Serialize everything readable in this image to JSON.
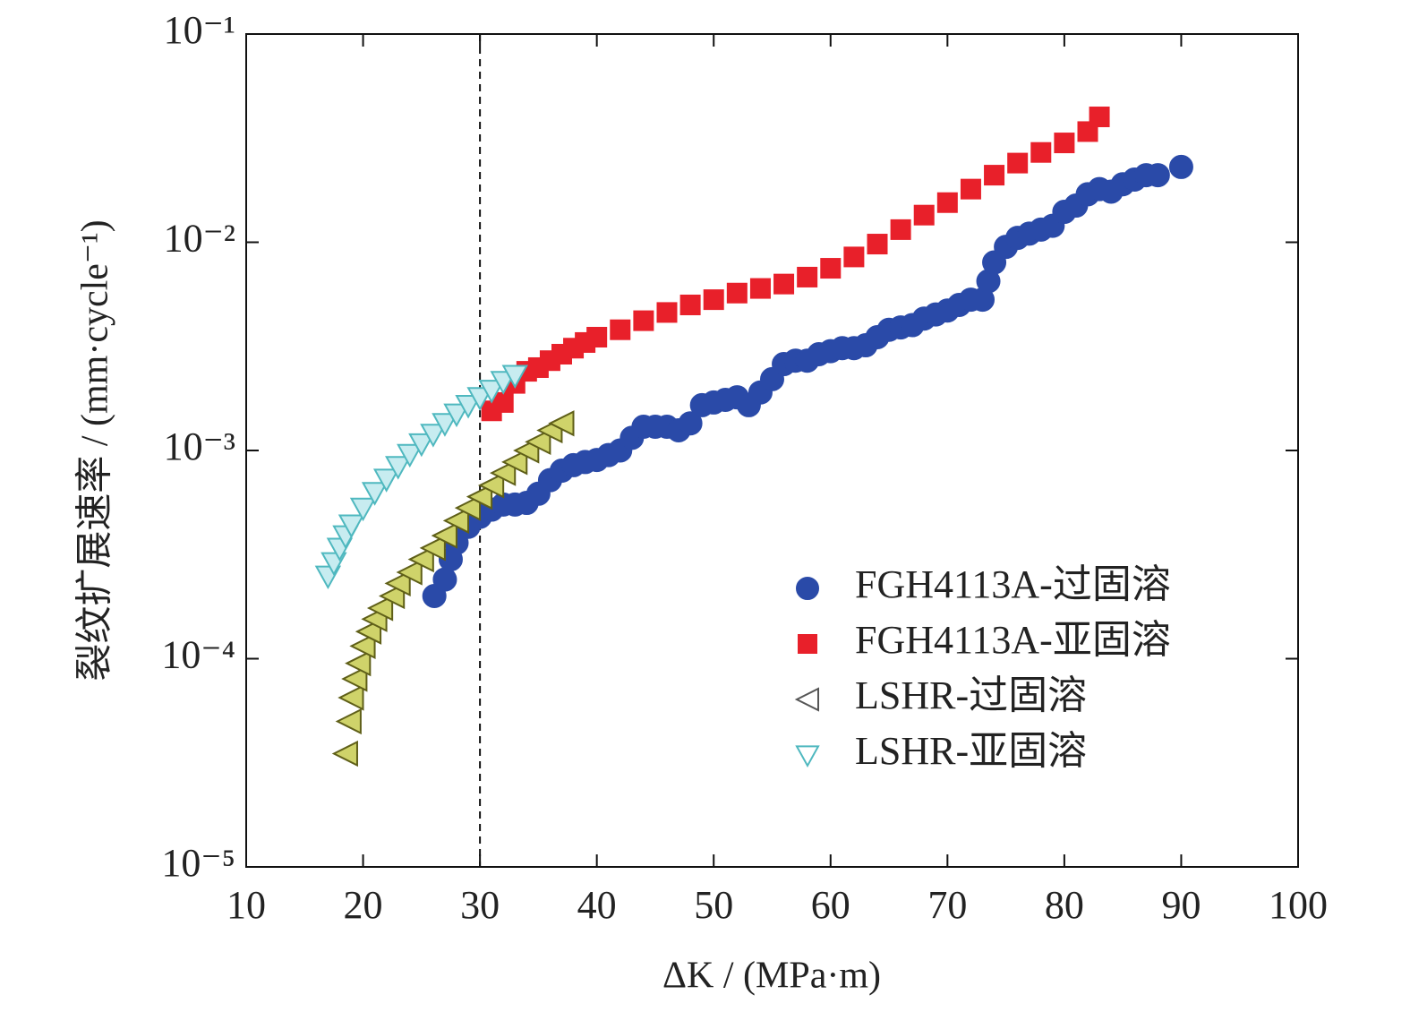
{
  "chart_data": {
    "type": "scatter",
    "x_label": "ΔK / (MPa·m)",
    "y_label": "裂纹扩展速率 / (mm·cycle⁻¹)",
    "xlim": [
      10,
      100
    ],
    "xticks": [
      10,
      20,
      30,
      40,
      50,
      60,
      70,
      80,
      90,
      100
    ],
    "ylim": [
      1e-05,
      0.1
    ],
    "y_scale": "log",
    "yticks": [
      {
        "value": 1e-05,
        "label": "10⁻⁵"
      },
      {
        "value": 0.0001,
        "label": "10⁻⁴"
      },
      {
        "value": 0.001,
        "label": "10⁻³"
      },
      {
        "value": 0.01,
        "label": "10⁻²"
      },
      {
        "value": 0.1,
        "label": "10⁻¹"
      }
    ],
    "vline_x": 30,
    "legend": "lower right",
    "series": [
      {
        "name": "FGH4113A-过固溶",
        "marker": "circle",
        "color": "#2a4aa8",
        "fill": "#2a4aa8",
        "x": [
          26.1,
          27,
          27.5,
          28,
          29,
          30,
          31,
          32,
          33,
          34,
          35,
          36,
          37,
          38,
          39,
          40,
          41,
          42,
          43,
          44,
          45,
          46,
          47,
          48,
          49,
          50,
          51,
          52,
          53,
          54,
          55,
          56,
          57,
          58,
          59,
          60,
          61,
          62,
          63,
          64,
          65,
          66,
          67,
          68,
          69,
          70,
          71,
          72,
          73,
          73.5,
          74,
          75,
          76,
          77,
          78,
          79,
          80,
          81,
          82,
          83,
          84,
          85,
          86,
          87,
          88,
          90
        ],
        "values": [
          0.0002,
          0.00024,
          0.0003,
          0.00036,
          0.00043,
          0.00048,
          0.00052,
          0.00055,
          0.00055,
          0.00056,
          0.00062,
          0.00072,
          0.0008,
          0.00085,
          0.00088,
          0.0009,
          0.00095,
          0.001,
          0.00115,
          0.0013,
          0.0013,
          0.0013,
          0.00125,
          0.00135,
          0.00165,
          0.0017,
          0.00175,
          0.0018,
          0.00165,
          0.0019,
          0.0022,
          0.0026,
          0.0027,
          0.0027,
          0.0029,
          0.003,
          0.0031,
          0.0031,
          0.0032,
          0.0035,
          0.0038,
          0.0039,
          0.004,
          0.0043,
          0.0045,
          0.0047,
          0.005,
          0.0053,
          0.0053,
          0.0065,
          0.008,
          0.0095,
          0.0105,
          0.011,
          0.0115,
          0.012,
          0.014,
          0.015,
          0.017,
          0.018,
          0.0175,
          0.019,
          0.02,
          0.021,
          0.021,
          0.023
        ]
      },
      {
        "name": "FGH4113A-亚固溶",
        "marker": "square",
        "color": "#e8202a",
        "fill": "#e8202a",
        "x": [
          31,
          32,
          33,
          34,
          35,
          36,
          37,
          38,
          39,
          40,
          42,
          44,
          46,
          48,
          50,
          52,
          54,
          56,
          58,
          60,
          62,
          64,
          66,
          68,
          70,
          72,
          74,
          76,
          78,
          80,
          82,
          83
        ],
        "values": [
          0.00155,
          0.0017,
          0.0021,
          0.0024,
          0.0025,
          0.0027,
          0.0029,
          0.0031,
          0.0033,
          0.0035,
          0.0038,
          0.0042,
          0.0046,
          0.005,
          0.0053,
          0.0057,
          0.006,
          0.0063,
          0.0068,
          0.0075,
          0.0085,
          0.0098,
          0.0115,
          0.0135,
          0.0155,
          0.018,
          0.021,
          0.024,
          0.027,
          0.03,
          0.034,
          0.04
        ]
      },
      {
        "name": "LSHR-过固溶",
        "marker": "triangle-left",
        "color": "#5f5f18",
        "fill": "#cfd36a",
        "x": [
          18.5,
          18.8,
          19,
          19.3,
          19.6,
          20,
          20.5,
          21,
          21.5,
          22.5,
          23,
          24,
          25,
          26,
          27,
          28,
          29,
          30,
          31,
          32,
          33,
          34,
          35,
          36,
          37
        ],
        "values": [
          3.5e-05,
          5e-05,
          6.5e-05,
          8e-05,
          9.5e-05,
          0.000115,
          0.000135,
          0.000155,
          0.000175,
          0.0002,
          0.00023,
          0.00026,
          0.0003,
          0.00034,
          0.00039,
          0.00046,
          0.00053,
          0.0006,
          0.00068,
          0.00078,
          0.00088,
          0.001,
          0.0011,
          0.00125,
          0.00135
        ]
      },
      {
        "name": "LSHR-亚固溶",
        "marker": "triangle-down",
        "color": "#4fb8bf",
        "fill": "#c7ecf0",
        "x": [
          17,
          17.5,
          18,
          18.5,
          19,
          20,
          21,
          22,
          23,
          24,
          25,
          26,
          27,
          28,
          29,
          30,
          31,
          32,
          33
        ],
        "values": [
          0.00025,
          0.00029,
          0.00034,
          0.00039,
          0.00044,
          0.00053,
          0.00063,
          0.00073,
          0.00084,
          0.00096,
          0.00108,
          0.0012,
          0.00135,
          0.0015,
          0.00165,
          0.0018,
          0.00195,
          0.00215,
          0.0023
        ]
      }
    ]
  }
}
